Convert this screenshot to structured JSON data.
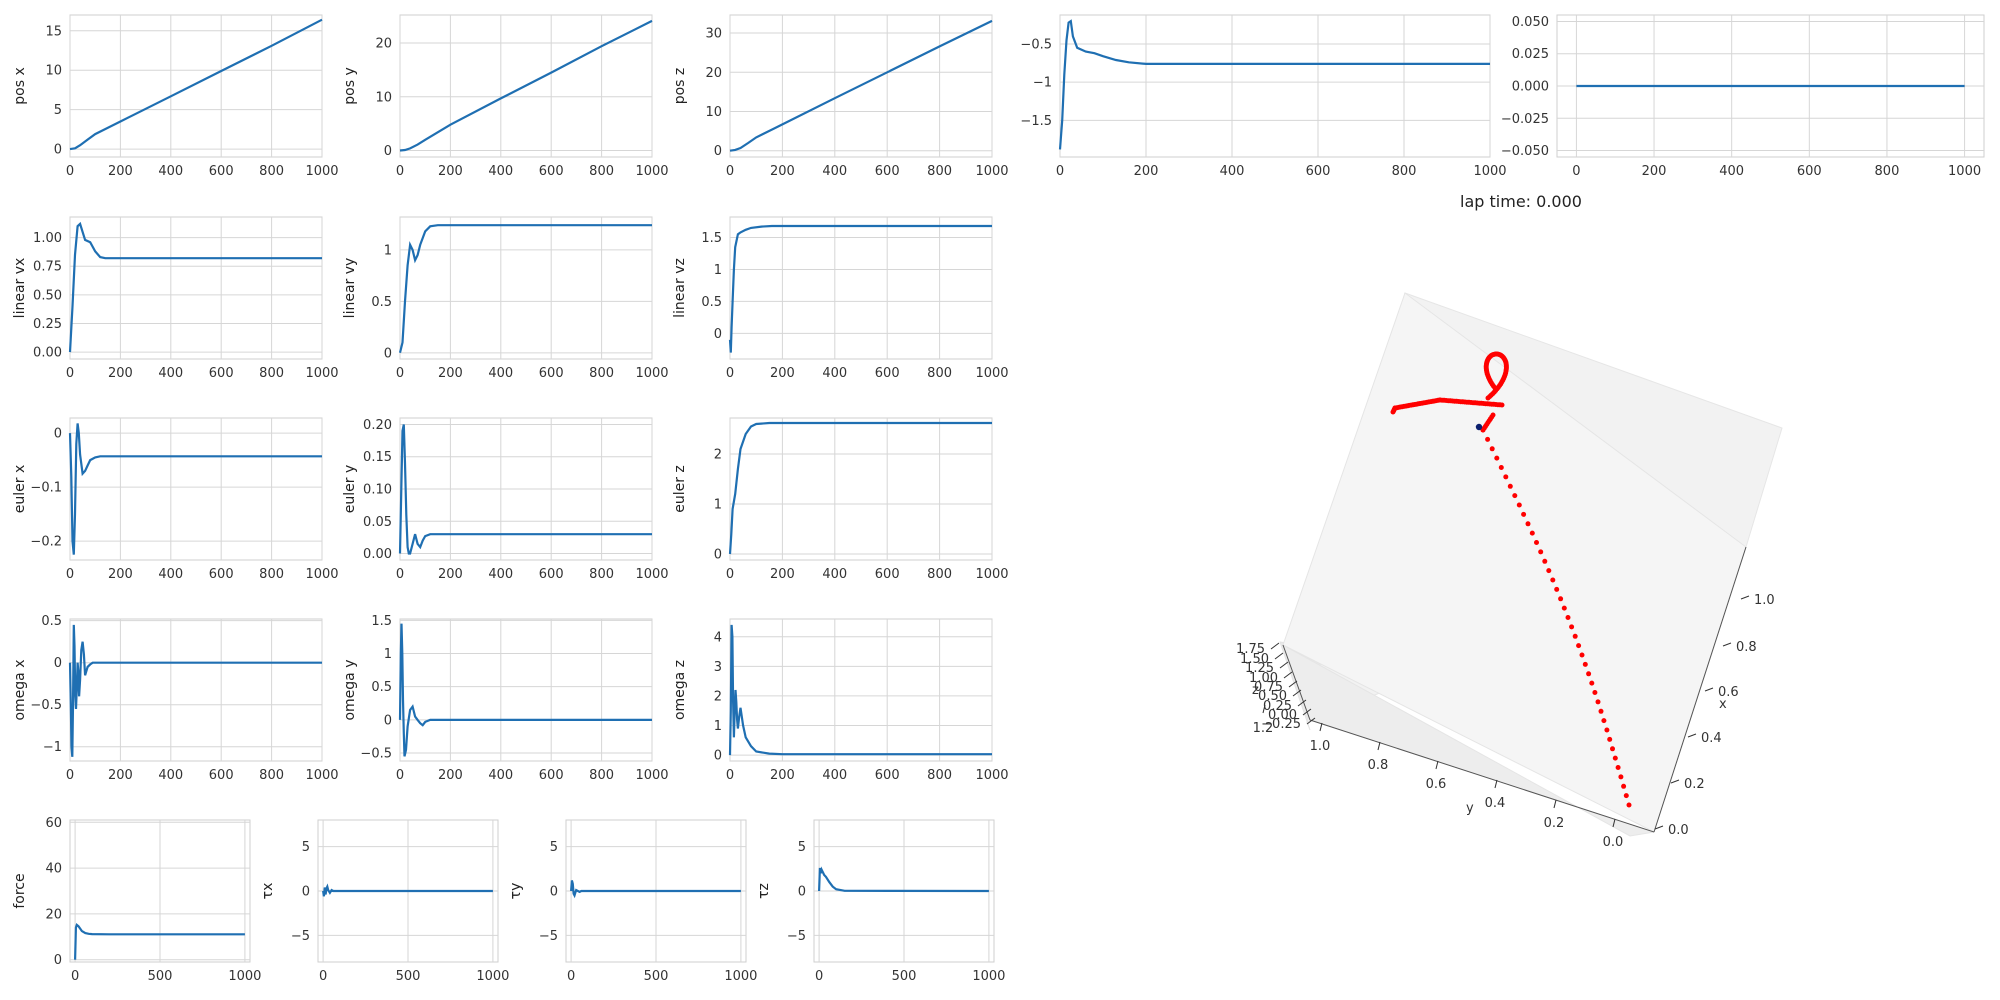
{
  "figure": {
    "title": "lap time: 0.000"
  },
  "chart_data": [
    {
      "id": "pos_x",
      "type": "line",
      "ylabel": "pos x",
      "xlim": [
        0,
        1000
      ],
      "ylim": [
        -1,
        17
      ],
      "xticks": [
        0,
        200,
        400,
        600,
        800,
        1000
      ],
      "yticks": [
        0,
        5,
        10,
        15
      ],
      "x": [
        0,
        20,
        40,
        70,
        100,
        200,
        400,
        600,
        800,
        1000
      ],
      "y": [
        0,
        0.1,
        0.5,
        1.2,
        1.9,
        3.5,
        6.7,
        9.9,
        13.1,
        16.4
      ]
    },
    {
      "id": "pos_y",
      "type": "line",
      "ylabel": "pos y",
      "xlim": [
        0,
        1000
      ],
      "ylim": [
        -1.2,
        25.2
      ],
      "xticks": [
        0,
        200,
        400,
        600,
        800,
        1000
      ],
      "yticks": [
        0,
        10,
        20
      ],
      "x": [
        0,
        20,
        40,
        70,
        100,
        200,
        400,
        600,
        800,
        1000
      ],
      "y": [
        0,
        0.1,
        0.4,
        1.1,
        2.0,
        4.8,
        9.7,
        14.5,
        19.4,
        24.1
      ]
    },
    {
      "id": "pos_z",
      "type": "line",
      "ylabel": "pos z",
      "xlim": [
        0,
        1000
      ],
      "ylim": [
        -1.6,
        34.6
      ],
      "xticks": [
        0,
        200,
        400,
        600,
        800,
        1000
      ],
      "yticks": [
        0,
        10,
        20,
        30
      ],
      "x": [
        0,
        20,
        40,
        70,
        100,
        200,
        400,
        600,
        800,
        1000
      ],
      "y": [
        0,
        0.2,
        0.7,
        2.0,
        3.4,
        6.7,
        13.4,
        20.0,
        26.6,
        33.1
      ]
    },
    {
      "id": "top_4",
      "type": "line",
      "ylabel": "",
      "xlim": [
        0,
        1000
      ],
      "ylim": [
        -1.98,
        -0.12
      ],
      "xticks": [
        0,
        200,
        400,
        600,
        800,
        1000
      ],
      "yticks": [
        -1.5,
        -1.0,
        -0.5
      ],
      "x": [
        0,
        5,
        10,
        15,
        20,
        25,
        30,
        40,
        60,
        80,
        100,
        130,
        160,
        200,
        300,
        1000
      ],
      "y": [
        -1.88,
        -1.5,
        -0.9,
        -0.45,
        -0.22,
        -0.2,
        -0.4,
        -0.55,
        -0.6,
        -0.62,
        -0.66,
        -0.71,
        -0.74,
        -0.76,
        -0.76,
        -0.76
      ]
    },
    {
      "id": "top_5",
      "type": "line",
      "ylabel": "",
      "xlim": [
        -50,
        1050
      ],
      "ylim": [
        -0.055,
        0.055
      ],
      "xticks": [
        0,
        200,
        400,
        600,
        800,
        1000
      ],
      "yticks": [
        -0.05,
        -0.025,
        0.0,
        0.025,
        0.05
      ],
      "ytick_labels": [
        "−0.050",
        "−0.025",
        "0.000",
        "0.025",
        "0.050"
      ],
      "x": [
        0,
        1000
      ],
      "y": [
        0,
        0
      ]
    },
    {
      "id": "linear_vx",
      "type": "line",
      "ylabel": "linear vx",
      "xlim": [
        0,
        1000
      ],
      "ylim": [
        -0.06,
        1.18
      ],
      "xticks": [
        0,
        200,
        400,
        600,
        800,
        1000
      ],
      "yticks": [
        0.0,
        0.25,
        0.5,
        0.75,
        1.0
      ],
      "ytick_labels": [
        "0.00",
        "0.25",
        "0.50",
        "0.75",
        "1.00"
      ],
      "x": [
        0,
        10,
        20,
        30,
        40,
        50,
        60,
        80,
        100,
        120,
        140,
        200,
        400,
        1000
      ],
      "y": [
        0,
        0.4,
        0.85,
        1.1,
        1.12,
        1.05,
        0.98,
        0.96,
        0.88,
        0.83,
        0.82,
        0.82,
        0.82,
        0.82
      ]
    },
    {
      "id": "linear_vy",
      "type": "line",
      "ylabel": "linear vy",
      "xlim": [
        0,
        1000
      ],
      "ylim": [
        -0.06,
        1.32
      ],
      "xticks": [
        0,
        200,
        400,
        600,
        800,
        1000
      ],
      "yticks": [
        0.0,
        0.5,
        1.0
      ],
      "x": [
        0,
        10,
        20,
        30,
        40,
        50,
        60,
        70,
        80,
        100,
        120,
        150,
        200,
        1000
      ],
      "y": [
        0,
        0.1,
        0.5,
        0.85,
        1.05,
        1.0,
        0.9,
        0.95,
        1.05,
        1.18,
        1.23,
        1.24,
        1.24,
        1.24
      ]
    },
    {
      "id": "linear_vz",
      "type": "line",
      "ylabel": "linear vz",
      "xlim": [
        0,
        1000
      ],
      "ylim": [
        -0.4,
        1.82
      ],
      "xticks": [
        0,
        200,
        400,
        600,
        800,
        1000
      ],
      "yticks": [
        0.0,
        0.5,
        1.0,
        1.5
      ],
      "x": [
        0,
        3,
        6,
        10,
        15,
        20,
        30,
        40,
        60,
        80,
        120,
        160,
        200,
        1000
      ],
      "y": [
        -0.1,
        -0.3,
        0.1,
        0.5,
        1.0,
        1.35,
        1.55,
        1.58,
        1.62,
        1.65,
        1.67,
        1.68,
        1.68,
        1.68
      ]
    },
    {
      "id": "euler_x",
      "type": "line",
      "ylabel": "euler x",
      "xlim": [
        0,
        1000
      ],
      "ylim": [
        -0.235,
        0.028
      ],
      "xticks": [
        0,
        200,
        400,
        600,
        800,
        1000
      ],
      "yticks": [
        -0.2,
        -0.1,
        0.0
      ],
      "x": [
        0,
        5,
        10,
        15,
        20,
        25,
        30,
        35,
        40,
        50,
        60,
        70,
        80,
        100,
        120,
        140,
        200,
        1000
      ],
      "y": [
        0,
        -0.08,
        -0.2,
        -0.225,
        -0.15,
        -0.02,
        0.018,
        0.0,
        -0.04,
        -0.075,
        -0.07,
        -0.06,
        -0.05,
        -0.045,
        -0.043,
        -0.043,
        -0.043,
        -0.043
      ]
    },
    {
      "id": "euler_y",
      "type": "line",
      "ylabel": "euler y",
      "xlim": [
        0,
        1000
      ],
      "ylim": [
        -0.01,
        0.21
      ],
      "xticks": [
        0,
        200,
        400,
        600,
        800,
        1000
      ],
      "yticks": [
        0.0,
        0.05,
        0.1,
        0.15,
        0.2
      ],
      "ytick_labels": [
        "0.00",
        "0.05",
        "0.10",
        "0.15",
        "0.20"
      ],
      "x": [
        0,
        5,
        10,
        15,
        20,
        25,
        30,
        35,
        40,
        50,
        60,
        70,
        80,
        90,
        100,
        120,
        150,
        200,
        1000
      ],
      "y": [
        0,
        0.1,
        0.19,
        0.2,
        0.14,
        0.06,
        0.01,
        0.0,
        0.0,
        0.015,
        0.03,
        0.015,
        0.01,
        0.02,
        0.027,
        0.03,
        0.03,
        0.03,
        0.03
      ]
    },
    {
      "id": "euler_z",
      "type": "line",
      "ylabel": "euler z",
      "xlim": [
        0,
        1000
      ],
      "ylim": [
        -0.12,
        2.72
      ],
      "xticks": [
        0,
        200,
        400,
        600,
        800,
        1000
      ],
      "yticks": [
        0,
        1,
        2
      ],
      "x": [
        0,
        5,
        10,
        15,
        20,
        30,
        40,
        60,
        80,
        100,
        150,
        200,
        1000
      ],
      "y": [
        0,
        0.4,
        0.9,
        1.05,
        1.2,
        1.7,
        2.1,
        2.4,
        2.55,
        2.6,
        2.62,
        2.62,
        2.62
      ]
    },
    {
      "id": "omega_x",
      "type": "line",
      "ylabel": "omega x",
      "xlim": [
        0,
        1000
      ],
      "ylim": [
        -1.17,
        0.52
      ],
      "xticks": [
        0,
        200,
        400,
        600,
        800,
        1000
      ],
      "yticks": [
        -1.0,
        -0.5,
        0.0,
        0.5
      ],
      "x": [
        0,
        3,
        6,
        9,
        12,
        15,
        18,
        21,
        24,
        27,
        30,
        33,
        36,
        40,
        45,
        50,
        55,
        60,
        70,
        80,
        90,
        100,
        150,
        1000
      ],
      "y": [
        0,
        -0.5,
        -1.0,
        -1.12,
        -0.5,
        0.45,
        0.2,
        -0.4,
        -0.55,
        -0.3,
        0.0,
        -0.1,
        -0.4,
        -0.2,
        0.15,
        0.25,
        0.1,
        -0.15,
        -0.05,
        -0.02,
        0.0,
        0.0,
        0.0,
        0.0
      ]
    },
    {
      "id": "omega_y",
      "type": "line",
      "ylabel": "omega y",
      "xlim": [
        0,
        1000
      ],
      "ylim": [
        -0.62,
        1.52
      ],
      "xticks": [
        0,
        200,
        400,
        600,
        800,
        1000
      ],
      "yticks": [
        -0.5,
        0.0,
        0.5,
        1.0,
        1.5
      ],
      "x": [
        0,
        3,
        6,
        9,
        12,
        15,
        18,
        21,
        24,
        30,
        40,
        50,
        60,
        70,
        80,
        90,
        100,
        120,
        150,
        1000
      ],
      "y": [
        0,
        1.0,
        1.45,
        1.0,
        0.3,
        -0.2,
        -0.55,
        -0.5,
        -0.45,
        -0.1,
        0.15,
        0.2,
        0.05,
        0.0,
        -0.05,
        -0.08,
        -0.03,
        0.0,
        0.0,
        0.0
      ]
    },
    {
      "id": "omega_z",
      "type": "line",
      "ylabel": "omega z",
      "xlim": [
        0,
        1000
      ],
      "ylim": [
        -0.2,
        4.6
      ],
      "xticks": [
        0,
        200,
        400,
        600,
        800,
        1000
      ],
      "yticks": [
        0,
        1,
        2,
        3,
        4
      ],
      "x": [
        0,
        3,
        6,
        9,
        12,
        15,
        18,
        21,
        24,
        27,
        30,
        35,
        40,
        50,
        60,
        80,
        100,
        150,
        200,
        1000
      ],
      "y": [
        0,
        1.5,
        4.4,
        4.0,
        1.8,
        0.6,
        1.5,
        2.2,
        1.8,
        1.2,
        0.9,
        1.3,
        1.6,
        1.0,
        0.6,
        0.3,
        0.12,
        0.05,
        0.03,
        0.03
      ]
    },
    {
      "id": "force",
      "type": "line",
      "ylabel": "force",
      "xlim": [
        -30,
        1030
      ],
      "ylim": [
        -1,
        61
      ],
      "xticks": [
        0,
        500,
        1000
      ],
      "yticks": [
        0,
        20,
        40,
        60
      ],
      "x": [
        0,
        5,
        10,
        20,
        40,
        60,
        80,
        100,
        200,
        1000
      ],
      "y": [
        0,
        14,
        15.2,
        14.6,
        12.5,
        11.6,
        11.3,
        11.2,
        11.1,
        11.1
      ]
    },
    {
      "id": "tau_x",
      "type": "line",
      "ylabel": "τx",
      "xlim": [
        -30,
        1030
      ],
      "ylim": [
        -8,
        8
      ],
      "xticks": [
        0,
        500,
        1000
      ],
      "yticks": [
        -5,
        0,
        5
      ],
      "x": [
        0,
        5,
        10,
        15,
        20,
        25,
        30,
        40,
        50,
        60,
        80,
        100,
        1000
      ],
      "y": [
        0,
        -0.6,
        0.4,
        -0.4,
        0.3,
        0.5,
        0.1,
        -0.2,
        0.1,
        0.0,
        0.0,
        0.0,
        0.0
      ]
    },
    {
      "id": "tau_y",
      "type": "line",
      "ylabel": "τy",
      "xlim": [
        -30,
        1030
      ],
      "ylim": [
        -8,
        8
      ],
      "xticks": [
        0,
        500,
        1000
      ],
      "yticks": [
        -5,
        0,
        5
      ],
      "x": [
        0,
        5,
        10,
        15,
        20,
        25,
        30,
        40,
        50,
        60,
        80,
        1000
      ],
      "y": [
        0,
        1.2,
        0.8,
        -0.3,
        -0.5,
        -0.2,
        0.1,
        0.0,
        -0.1,
        0.0,
        0.0,
        0.0
      ]
    },
    {
      "id": "tau_z",
      "type": "line",
      "ylabel": "τz",
      "xlim": [
        -30,
        1030
      ],
      "ylim": [
        -8,
        8
      ],
      "xticks": [
        0,
        500,
        1000
      ],
      "yticks": [
        -5,
        0,
        5
      ],
      "x": [
        0,
        5,
        10,
        15,
        20,
        30,
        40,
        60,
        80,
        100,
        150,
        1000
      ],
      "y": [
        0,
        2.6,
        2.0,
        2.4,
        2.2,
        1.8,
        1.6,
        1.0,
        0.5,
        0.2,
        0.02,
        0.0
      ]
    },
    {
      "id": "trajectory_3d",
      "type": "scatter",
      "x_label": "x",
      "y_label": "y",
      "z_label": "z",
      "x_ticks": [
        "0.0",
        "0.2",
        "0.4",
        "0.6",
        "0.8",
        "1.0"
      ],
      "y_ticks": [
        "0.0",
        "0.2",
        "0.4",
        "0.6",
        "0.8",
        "1.0",
        "1.2"
      ],
      "z_ticks": [
        "−0.25",
        "0.00",
        "0.25",
        "0.50",
        "0.75",
        "1.00",
        "1.25",
        "1.50",
        "1.75"
      ],
      "trajectory_color": "#ff0000",
      "current_point_color": "#0b1f6e"
    }
  ]
}
